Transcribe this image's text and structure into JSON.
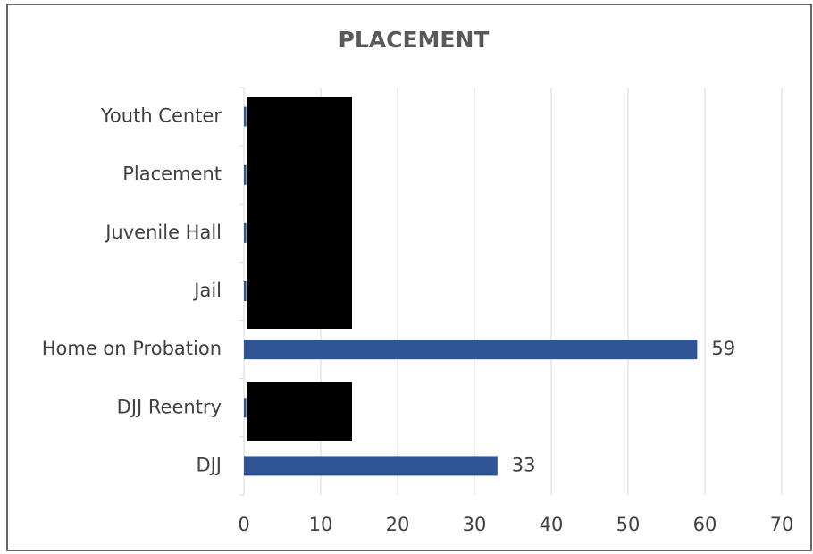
{
  "chart_data": {
    "type": "bar",
    "orientation": "horizontal",
    "title": "PLACEMENT",
    "categories": [
      "Youth Center",
      "Placement",
      "Juvenile Hall",
      "Jail",
      "Home on Probation",
      "DJJ Reentry",
      "DJJ"
    ],
    "values": [
      0.3,
      0.3,
      0.3,
      0.3,
      59,
      0.3,
      33
    ],
    "value_labels": [
      null,
      null,
      null,
      null,
      "59",
      null,
      "33"
    ],
    "color": "#2f5597",
    "xlim": [
      0,
      70
    ],
    "xticks": [
      0,
      10,
      20,
      30,
      40,
      50,
      60,
      70
    ],
    "grid": true
  }
}
